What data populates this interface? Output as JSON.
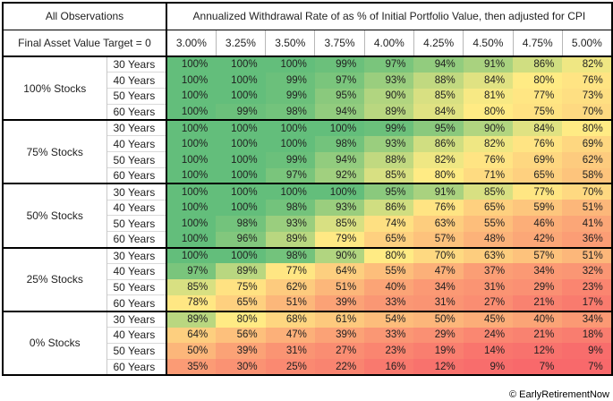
{
  "header": {
    "observations_label": "All Observations",
    "target_label": "Final Asset Value Target = 0"
  },
  "footer": {
    "credit": "© EarlyRetirementNow"
  },
  "chart_data": {
    "type": "heatmap",
    "title": "Annualized Withdrawal Rate of as % of Initial Portfolio Value, then adjusted for CPI",
    "unit": "%",
    "columns": [
      "3.00%",
      "3.25%",
      "3.50%",
      "3.75%",
      "4.00%",
      "4.25%",
      "4.50%",
      "4.75%",
      "5.00%"
    ],
    "row_groups": [
      {
        "label": "100% Stocks",
        "rows": [
          {
            "label": "30 Years",
            "values": [
              100,
              100,
              100,
              99,
              97,
              94,
              91,
              86,
              82
            ]
          },
          {
            "label": "40 Years",
            "values": [
              100,
              100,
              99,
              97,
              93,
              88,
              84,
              80,
              76
            ]
          },
          {
            "label": "50 Years",
            "values": [
              100,
              100,
              99,
              95,
              90,
              85,
              81,
              77,
              73
            ]
          },
          {
            "label": "60 Years",
            "values": [
              100,
              99,
              98,
              94,
              89,
              84,
              80,
              75,
              70
            ]
          }
        ]
      },
      {
        "label": "75% Stocks",
        "rows": [
          {
            "label": "30 Years",
            "values": [
              100,
              100,
              100,
              100,
              99,
              95,
              90,
              84,
              80
            ]
          },
          {
            "label": "40 Years",
            "values": [
              100,
              100,
              100,
              98,
              93,
              86,
              82,
              76,
              69
            ]
          },
          {
            "label": "50 Years",
            "values": [
              100,
              100,
              99,
              94,
              88,
              82,
              76,
              69,
              62
            ]
          },
          {
            "label": "60 Years",
            "values": [
              100,
              100,
              97,
              92,
              85,
              80,
              71,
              65,
              58
            ]
          }
        ]
      },
      {
        "label": "50% Stocks",
        "rows": [
          {
            "label": "30 Years",
            "values": [
              100,
              100,
              100,
              100,
              95,
              91,
              85,
              77,
              70
            ]
          },
          {
            "label": "40 Years",
            "values": [
              100,
              100,
              98,
              93,
              86,
              76,
              65,
              59,
              51
            ]
          },
          {
            "label": "50 Years",
            "values": [
              100,
              98,
              93,
              85,
              74,
              63,
              55,
              46,
              41
            ]
          },
          {
            "label": "60 Years",
            "values": [
              100,
              96,
              89,
              79,
              65,
              57,
              48,
              42,
              36
            ]
          }
        ]
      },
      {
        "label": "25% Stocks",
        "rows": [
          {
            "label": "30 Years",
            "values": [
              100,
              100,
              98,
              90,
              80,
              70,
              63,
              57,
              51
            ]
          },
          {
            "label": "40 Years",
            "values": [
              97,
              89,
              77,
              64,
              55,
              47,
              37,
              34,
              32
            ]
          },
          {
            "label": "50 Years",
            "values": [
              85,
              75,
              62,
              51,
              40,
              34,
              31,
              29,
              23
            ]
          },
          {
            "label": "60 Years",
            "values": [
              78,
              65,
              51,
              39,
              33,
              31,
              27,
              21,
              17
            ]
          }
        ]
      },
      {
        "label": "0% Stocks",
        "rows": [
          {
            "label": "30 Years",
            "values": [
              89,
              80,
              68,
              61,
              54,
              50,
              45,
              40,
              34
            ]
          },
          {
            "label": "40 Years",
            "values": [
              64,
              56,
              47,
              39,
              33,
              29,
              24,
              21,
              18
            ]
          },
          {
            "label": "50 Years",
            "values": [
              50,
              39,
              31,
              27,
              23,
              19,
              14,
              12,
              9
            ]
          },
          {
            "label": "60 Years",
            "values": [
              35,
              30,
              25,
              22,
              16,
              12,
              9,
              7,
              7
            ]
          }
        ]
      }
    ],
    "color_scale": {
      "min": {
        "value": 7,
        "color": "#F8696B"
      },
      "mid": {
        "value": 80,
        "color": "#FFEB84"
      },
      "max": {
        "value": 100,
        "color": "#63BE7B"
      }
    }
  }
}
